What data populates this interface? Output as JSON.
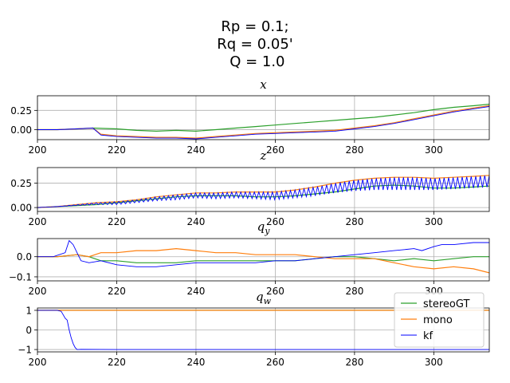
{
  "figure": {
    "suptitle_lines": [
      "Rp = 0.1;",
      "Rq = 0.05'",
      " Q = 1.0"
    ]
  },
  "legend": {
    "placement": "bottom-right",
    "entries": [
      {
        "name": "stereoGT",
        "color": "#2ca02c"
      },
      {
        "name": "mono",
        "color": "#ff7f0e"
      },
      {
        "name": "kf",
        "color": "#0000ff"
      }
    ]
  },
  "chart_data": [
    {
      "type": "line",
      "title": "x",
      "xlim": [
        200,
        314
      ],
      "ylim": [
        -0.13,
        0.44
      ],
      "xticks": [
        200,
        220,
        240,
        260,
        280,
        300
      ],
      "xtick_labels": [
        "200",
        "220",
        "240",
        "260",
        "280",
        "300"
      ],
      "yticks": [
        0.0,
        0.25
      ],
      "ytick_labels": [
        "0.00",
        "0.25"
      ],
      "grid": true,
      "series": [
        {
          "name": "stereoGT",
          "color": "#2ca02c",
          "x": [
            200,
            205,
            210,
            214,
            220,
            225,
            230,
            235,
            240,
            245,
            250,
            255,
            260,
            265,
            270,
            275,
            280,
            285,
            290,
            295,
            300,
            305,
            310,
            314
          ],
          "y": [
            0.0,
            0.0,
            0.01,
            0.02,
            0.01,
            -0.01,
            -0.02,
            -0.01,
            -0.02,
            0.0,
            0.02,
            0.04,
            0.06,
            0.08,
            0.1,
            0.12,
            0.14,
            0.16,
            0.19,
            0.22,
            0.26,
            0.29,
            0.31,
            0.33
          ]
        },
        {
          "name": "mono",
          "color": "#ff7f0e",
          "x": [
            200,
            205,
            210,
            214,
            216,
            220,
            225,
            230,
            235,
            240,
            245,
            250,
            255,
            260,
            265,
            270,
            275,
            280,
            285,
            290,
            295,
            300,
            305,
            310,
            314
          ],
          "y": [
            0.0,
            0.0,
            0.01,
            0.02,
            -0.06,
            -0.08,
            -0.09,
            -0.1,
            -0.1,
            -0.11,
            -0.09,
            -0.07,
            -0.05,
            -0.04,
            -0.03,
            -0.02,
            -0.01,
            0.02,
            0.05,
            0.09,
            0.14,
            0.19,
            0.24,
            0.28,
            0.31
          ]
        },
        {
          "name": "kf",
          "color": "#0000ff",
          "x": [
            200,
            205,
            210,
            214,
            216,
            220,
            225,
            230,
            235,
            240,
            245,
            250,
            255,
            260,
            265,
            270,
            275,
            280,
            285,
            290,
            295,
            300,
            305,
            310,
            314
          ],
          "y": [
            0.0,
            0.0,
            0.01,
            0.02,
            -0.07,
            -0.09,
            -0.1,
            -0.11,
            -0.11,
            -0.12,
            -0.1,
            -0.08,
            -0.06,
            -0.05,
            -0.04,
            -0.03,
            -0.02,
            0.01,
            0.04,
            0.08,
            0.13,
            0.18,
            0.23,
            0.27,
            0.3
          ]
        }
      ]
    },
    {
      "type": "line",
      "title": "z",
      "xlim": [
        200,
        314
      ],
      "ylim": [
        -0.04,
        0.41
      ],
      "xticks": [
        200,
        220,
        240,
        260,
        280,
        300
      ],
      "xtick_labels": [
        "200",
        "220",
        "240",
        "260",
        "280",
        "300"
      ],
      "yticks": [
        0.0,
        0.25
      ],
      "ytick_labels": [
        "0.00",
        "0.25"
      ],
      "grid": true,
      "series": [
        {
          "name": "stereoGT",
          "color": "#2ca02c",
          "x": [
            200,
            205,
            210,
            215,
            220,
            225,
            230,
            235,
            240,
            245,
            250,
            255,
            260,
            265,
            270,
            275,
            280,
            285,
            290,
            295,
            300,
            305,
            310,
            314
          ],
          "y": [
            0.0,
            0.01,
            0.02,
            0.03,
            0.05,
            0.07,
            0.09,
            0.11,
            0.12,
            0.12,
            0.12,
            0.11,
            0.11,
            0.12,
            0.14,
            0.16,
            0.19,
            0.22,
            0.23,
            0.22,
            0.2,
            0.2,
            0.21,
            0.22
          ]
        },
        {
          "name": "mono",
          "color": "#ff7f0e",
          "x": [
            200,
            205,
            210,
            215,
            220,
            225,
            230,
            235,
            240,
            245,
            250,
            255,
            260,
            265,
            270,
            275,
            280,
            285,
            290,
            295,
            300,
            305,
            310,
            314
          ],
          "y": [
            0.0,
            0.01,
            0.03,
            0.05,
            0.06,
            0.08,
            0.11,
            0.13,
            0.15,
            0.15,
            0.16,
            0.16,
            0.16,
            0.18,
            0.21,
            0.25,
            0.28,
            0.3,
            0.31,
            0.31,
            0.3,
            0.31,
            0.32,
            0.33
          ]
        },
        {
          "name": "kf",
          "color": "#0000ff",
          "x": [
            200,
            205,
            210,
            215,
            220,
            225,
            230,
            235,
            240,
            245,
            250,
            255,
            260,
            265,
            270,
            275,
            280,
            285,
            290,
            295,
            300,
            305,
            310,
            314
          ],
          "y": [
            0.0,
            0.01,
            0.03,
            0.05,
            0.06,
            0.08,
            0.11,
            0.13,
            0.15,
            0.15,
            0.16,
            0.16,
            0.16,
            0.18,
            0.21,
            0.25,
            0.28,
            0.3,
            0.31,
            0.31,
            0.3,
            0.31,
            0.32,
            0.33
          ],
          "note_sawtooth_amplitude": [
            0.0,
            0.0,
            0.01,
            0.02,
            0.03,
            0.03,
            0.04,
            0.05,
            0.05,
            0.06,
            0.06,
            0.07,
            0.08,
            0.08,
            0.09,
            0.1,
            0.11,
            0.12,
            0.13,
            0.13,
            0.12,
            0.12,
            0.12,
            0.12
          ]
        }
      ]
    },
    {
      "type": "line",
      "title": "q_y",
      "title_tex": "q",
      "title_sub": "y",
      "xlim": [
        200,
        314
      ],
      "ylim": [
        -0.12,
        0.09
      ],
      "xticks": [
        200,
        220,
        240,
        260,
        280,
        300
      ],
      "xtick_labels": [
        "200",
        "220",
        "240",
        "260",
        "280",
        "300"
      ],
      "yticks": [
        -0.1,
        0.0
      ],
      "ytick_labels": [
        "−0.1",
        "0.0"
      ],
      "grid": true,
      "series": [
        {
          "name": "stereoGT",
          "color": "#2ca02c",
          "x": [
            200,
            205,
            210,
            213,
            216,
            220,
            225,
            230,
            235,
            240,
            245,
            250,
            255,
            260,
            265,
            270,
            275,
            280,
            285,
            290,
            295,
            300,
            305,
            310,
            314
          ],
          "y": [
            0.0,
            0.0,
            0.01,
            0.0,
            -0.02,
            -0.02,
            -0.03,
            -0.03,
            -0.03,
            -0.02,
            -0.02,
            -0.02,
            -0.02,
            -0.02,
            -0.02,
            -0.01,
            0.0,
            0.0,
            -0.01,
            -0.02,
            -0.01,
            -0.02,
            -0.01,
            0.0,
            0.0
          ]
        },
        {
          "name": "mono",
          "color": "#ff7f0e",
          "x": [
            200,
            205,
            210,
            213,
            216,
            220,
            225,
            230,
            235,
            240,
            245,
            250,
            255,
            260,
            265,
            270,
            275,
            280,
            285,
            290,
            295,
            300,
            305,
            310,
            314
          ],
          "y": [
            0.0,
            0.0,
            0.01,
            0.0,
            0.02,
            0.02,
            0.03,
            0.03,
            0.04,
            0.03,
            0.02,
            0.02,
            0.01,
            0.01,
            0.01,
            0.0,
            -0.01,
            -0.01,
            -0.01,
            -0.03,
            -0.05,
            -0.06,
            -0.05,
            -0.06,
            -0.08
          ]
        },
        {
          "name": "kf",
          "color": "#0000ff",
          "x": [
            200,
            204,
            207,
            208,
            209,
            210,
            211,
            213,
            216,
            220,
            225,
            230,
            235,
            240,
            245,
            250,
            255,
            260,
            265,
            270,
            275,
            280,
            285,
            290,
            295,
            297,
            300,
            302,
            305,
            310,
            314
          ],
          "y": [
            0.0,
            0.0,
            0.02,
            0.08,
            0.06,
            0.02,
            -0.02,
            -0.03,
            -0.02,
            -0.04,
            -0.05,
            -0.05,
            -0.04,
            -0.03,
            -0.03,
            -0.03,
            -0.03,
            -0.02,
            -0.02,
            -0.01,
            0.0,
            0.01,
            0.02,
            0.03,
            0.04,
            0.03,
            0.05,
            0.06,
            0.06,
            0.07,
            0.07
          ]
        }
      ]
    },
    {
      "type": "line",
      "title": "q_w",
      "title_tex": "q",
      "title_sub": "w",
      "xlim": [
        200,
        314
      ],
      "ylim": [
        -1.12,
        1.12
      ],
      "xticks": [
        200,
        220,
        240,
        260,
        280,
        300
      ],
      "xtick_labels": [
        "200",
        "220",
        "240",
        "260",
        "280",
        "300"
      ],
      "yticks": [
        -1,
        0,
        1
      ],
      "ytick_labels": [
        "−1",
        "0",
        "1"
      ],
      "grid": true,
      "series": [
        {
          "name": "stereoGT",
          "color": "#2ca02c",
          "x": [
            200,
            314
          ],
          "y": [
            1.0,
            1.0
          ]
        },
        {
          "name": "mono",
          "color": "#ff7f0e",
          "x": [
            200,
            314
          ],
          "y": [
            1.0,
            1.0
          ]
        },
        {
          "name": "kf",
          "color": "#0000ff",
          "x": [
            200,
            205,
            206,
            207,
            207.5,
            208,
            208.5,
            209,
            209.5,
            210,
            211,
            220,
            240,
            260,
            280,
            300,
            314
          ],
          "y": [
            1.0,
            1.0,
            0.95,
            0.6,
            0.5,
            0.0,
            -0.4,
            -0.7,
            -0.9,
            -1.0,
            -0.99,
            -1.0,
            -1.0,
            -1.0,
            -1.0,
            -1.0,
            -1.0
          ]
        }
      ]
    }
  ]
}
